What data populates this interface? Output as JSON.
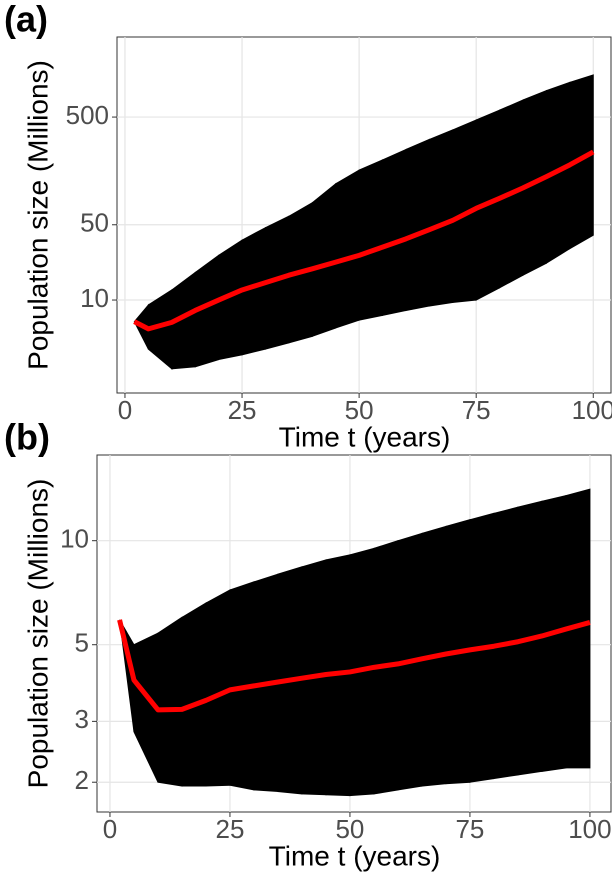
{
  "chart_data": [
    {
      "type": "line",
      "panel_label": "(a)",
      "xlabel": "Time t (years)",
      "ylabel": "Population size (Millions)",
      "log_y": true,
      "grid": true,
      "x": [
        2,
        5,
        10,
        15,
        20,
        25,
        30,
        35,
        40,
        45,
        50,
        55,
        60,
        65,
        70,
        75,
        80,
        85,
        90,
        95,
        100
      ],
      "xlim": [
        -1.7,
        104
      ],
      "xticks": [
        0,
        25,
        50,
        75,
        100
      ],
      "ylim": [
        1.37,
        2770
      ],
      "yticks": [
        10,
        50,
        500
      ],
      "band": {
        "color": "#000000",
        "lower": [
          6.3,
          3.5,
          2.3,
          2.4,
          2.8,
          3.1,
          3.5,
          4,
          4.6,
          5.5,
          6.5,
          7.2,
          8,
          8.8,
          9.5,
          10,
          13,
          17,
          22,
          30,
          40
        ],
        "upper": [
          6.3,
          9,
          12.4,
          18,
          26,
          36,
          47,
          60,
          80,
          120,
          161,
          200,
          250,
          310,
          380,
          470,
          580,
          720,
          880,
          1050,
          1230
        ]
      },
      "series": [
        {
          "color": "#ff0000",
          "values": [
            6.3,
            5.4,
            6.2,
            8,
            10,
            12.4,
            14.5,
            17,
            19.5,
            22.5,
            26,
            31,
            37,
            45,
            55,
            71,
            88,
            110,
            140,
            180,
            237
          ]
        }
      ]
    },
    {
      "type": "line",
      "panel_label": "(b)",
      "xlabel": "Time t (years)",
      "ylabel": "Population size (Millions)",
      "log_y": true,
      "grid": true,
      "x": [
        2,
        5,
        10,
        15,
        20,
        25,
        30,
        35,
        40,
        45,
        50,
        55,
        60,
        65,
        70,
        75,
        80,
        85,
        90,
        95,
        100
      ],
      "xlim": [
        -2.7,
        104.6
      ],
      "xticks": [
        0,
        25,
        50,
        75,
        100
      ],
      "ylim": [
        1.64,
        17.7
      ],
      "yticks": [
        2,
        3,
        5,
        10
      ],
      "band": {
        "color": "#000000",
        "lower": [
          5.9,
          2.8,
          2.0,
          1.95,
          1.95,
          1.96,
          1.9,
          1.88,
          1.85,
          1.84,
          1.83,
          1.85,
          1.9,
          1.95,
          1.98,
          2.0,
          2.05,
          2.1,
          2.15,
          2.2,
          2.2
        ],
        "upper": [
          5.9,
          5,
          5.4,
          6,
          6.6,
          7.2,
          7.6,
          8,
          8.4,
          8.8,
          9.1,
          9.5,
          10,
          10.5,
          11,
          11.5,
          12,
          12.5,
          13,
          13.5,
          14.1
        ]
      },
      "series": [
        {
          "color": "#ff0000",
          "values": [
            5.9,
            3.95,
            3.24,
            3.25,
            3.45,
            3.7,
            3.8,
            3.9,
            4.0,
            4.1,
            4.17,
            4.3,
            4.4,
            4.55,
            4.7,
            4.83,
            4.95,
            5.1,
            5.3,
            5.55,
            5.8
          ]
        }
      ]
    }
  ]
}
